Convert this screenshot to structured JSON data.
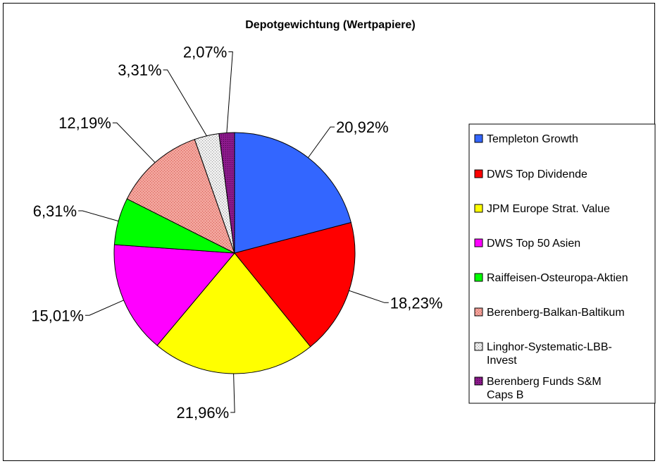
{
  "chart_data": {
    "type": "pie",
    "title": "Depotgewichtung (Wertpapiere)",
    "legend_position": "right",
    "slices": [
      {
        "name": "Templeton Growth",
        "value": 20.92,
        "label": "20,92%",
        "color": "#3366ff",
        "pattern": "solid"
      },
      {
        "name": "DWS Top Dividende",
        "value": 18.23,
        "label": "18,23%",
        "color": "#ff0000",
        "pattern": "solid"
      },
      {
        "name": "JPM Europe Strat. Value",
        "value": 21.96,
        "label": "21,96%",
        "color": "#ffff00",
        "pattern": "solid"
      },
      {
        "name": "DWS Top 50 Asien",
        "value": 15.01,
        "label": "15,01%",
        "color": "#ff00ff",
        "pattern": "solid"
      },
      {
        "name": "Raiffeisen-Osteuropa-Aktien",
        "value": 6.31,
        "label": "6,31%",
        "color": "#00ff00",
        "pattern": "solid"
      },
      {
        "name": "Berenberg-Balkan-Baltikum",
        "value": 12.19,
        "label": "12,19%",
        "color": "#f0908a",
        "pattern": "dotted"
      },
      {
        "name": "Linghor-Systematic-LBB-Invest",
        "value": 3.31,
        "label": "3,31%",
        "color": "#dddddd",
        "pattern": "dotted"
      },
      {
        "name": "Berenberg Funds S&M Caps B",
        "value": 2.07,
        "label": "2,07%",
        "color": "#8b1a8b",
        "pattern": "dotted"
      }
    ]
  }
}
